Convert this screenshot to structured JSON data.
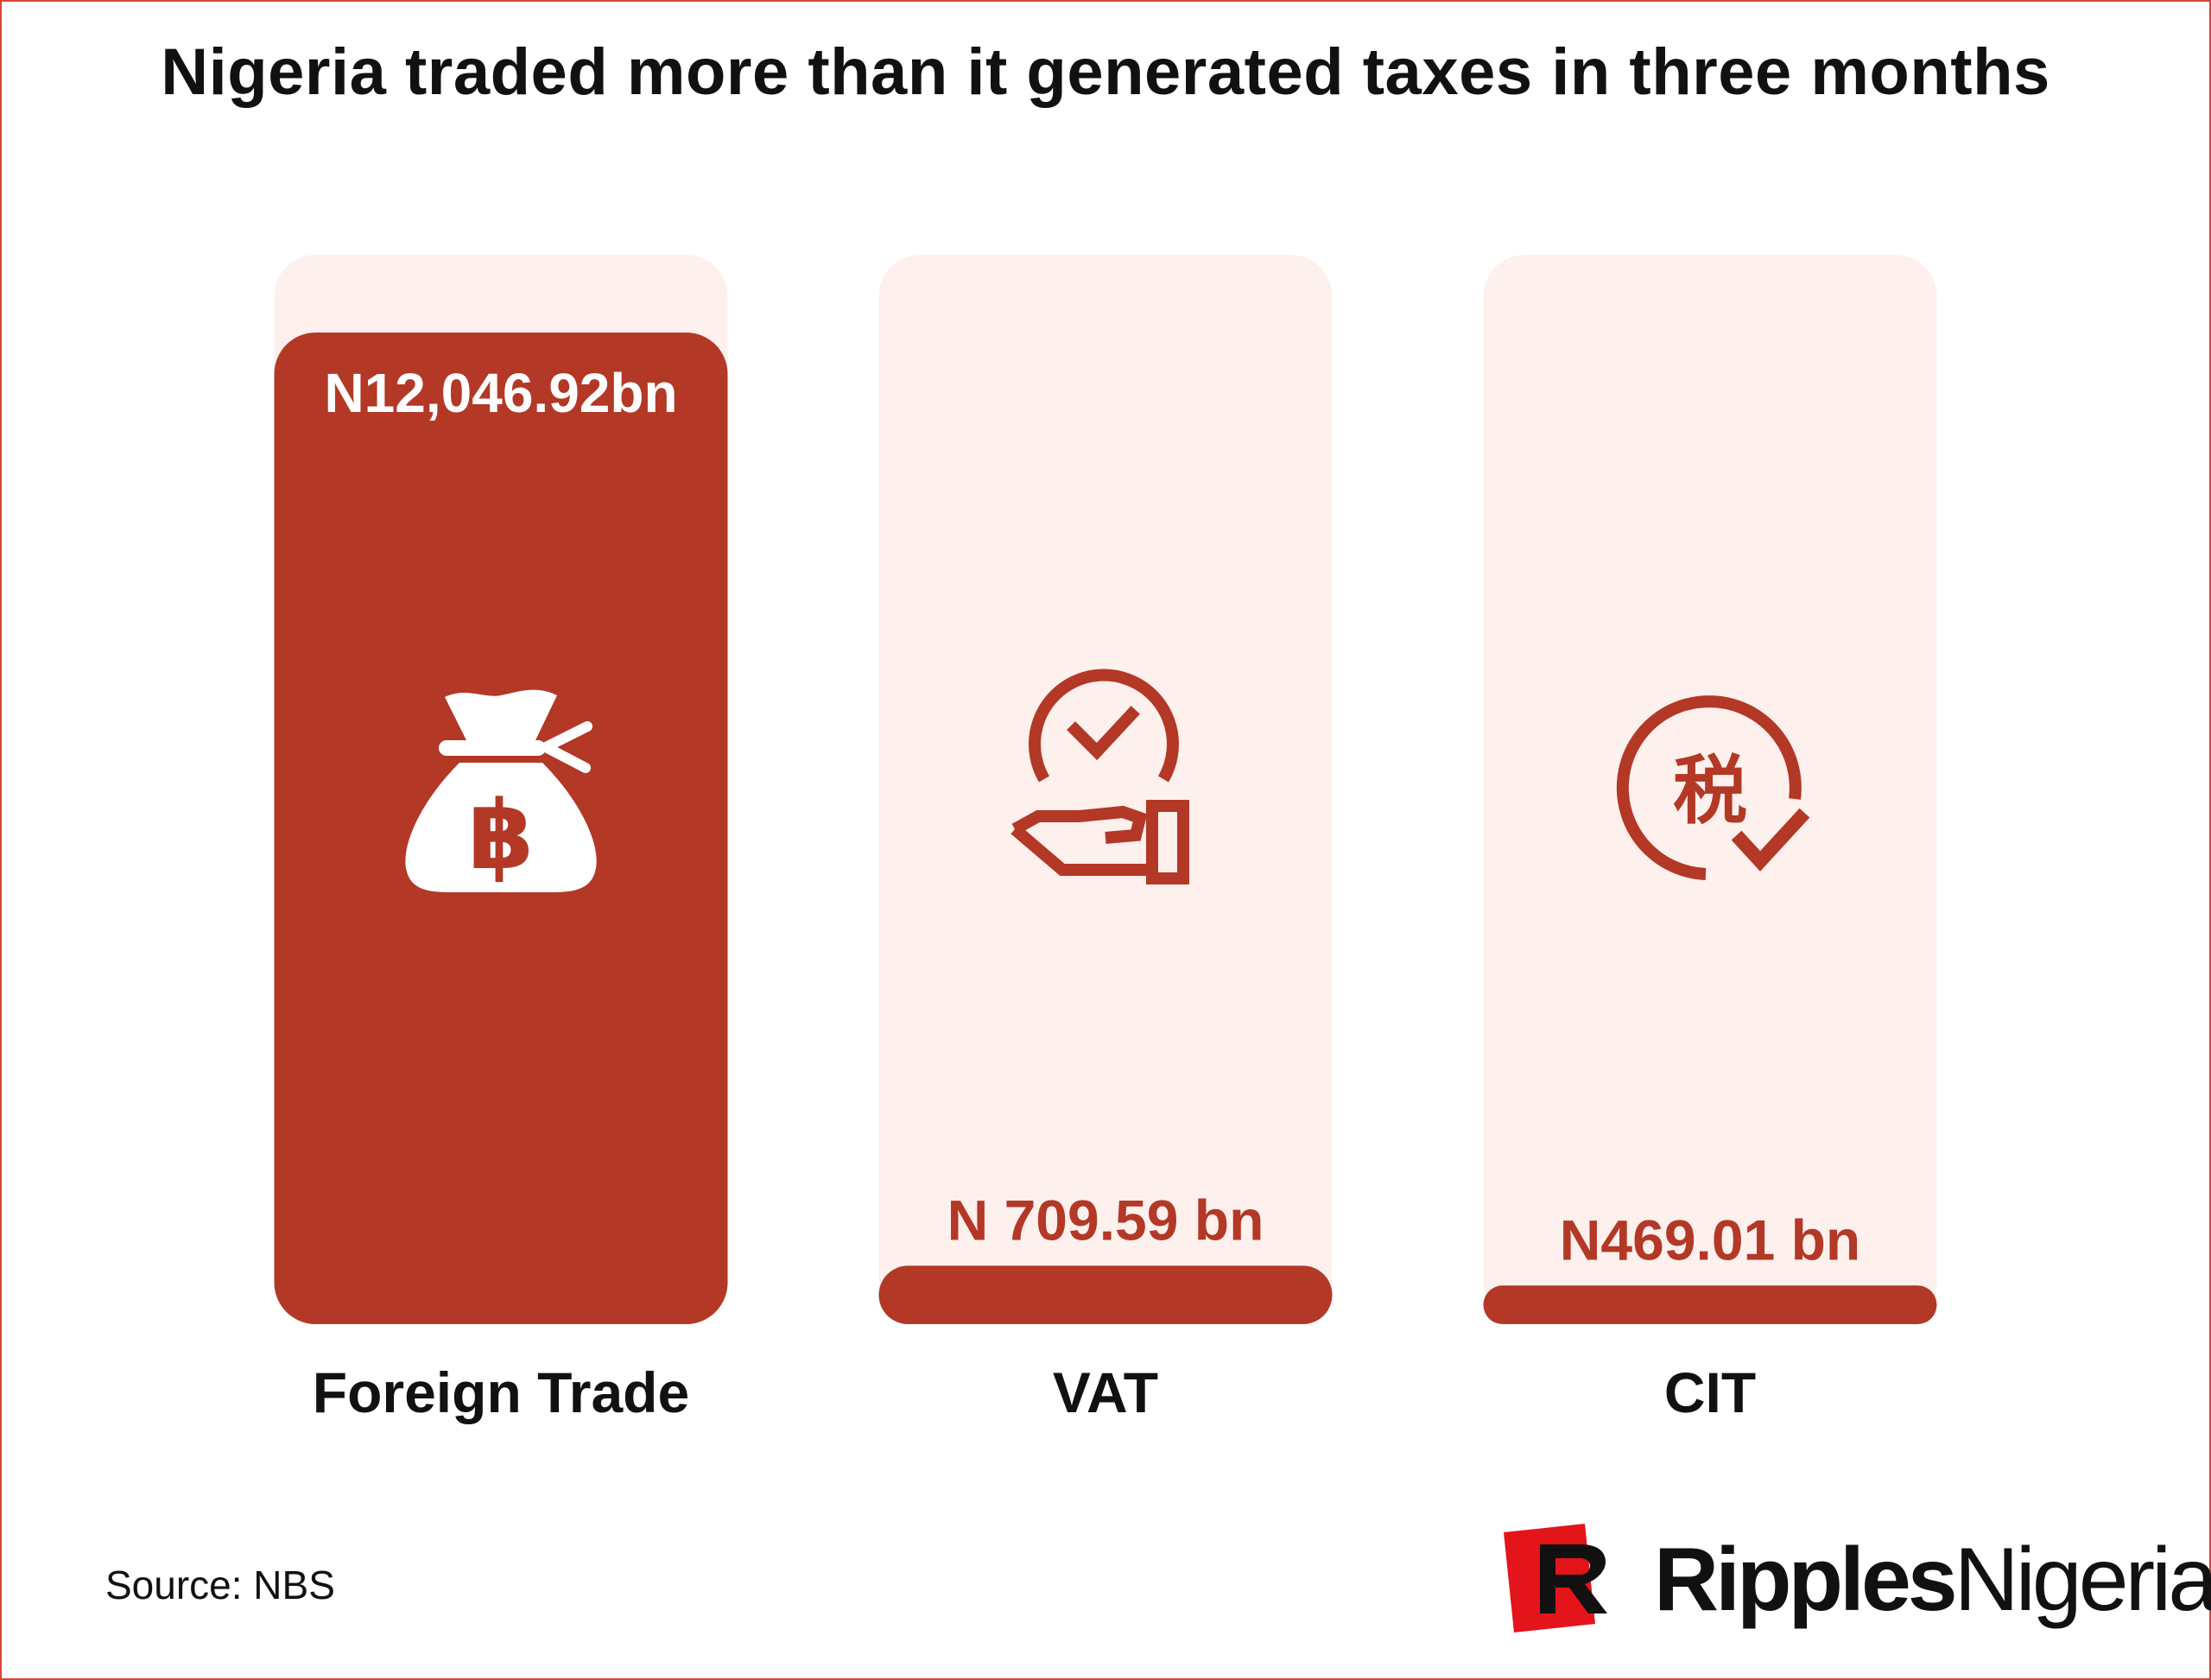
{
  "chart_data": {
    "type": "bar",
    "title": "Nigeria traded more than it generated taxes in three months",
    "categories": [
      "Foreign Trade",
      "VAT",
      "CIT"
    ],
    "values": [
      12046.92,
      709.59,
      469.01
    ],
    "value_labels": [
      "N12,046.92bn",
      "N 709.59 bn",
      "N469.01 bn"
    ],
    "icons": [
      "money-bag-icon",
      "hand-coin-check-icon",
      "tax-check-icon"
    ],
    "unit": "bn",
    "ylim": [
      0,
      12046.92
    ],
    "colors": {
      "bar": "#b33826",
      "track": "#fdf0ed",
      "label_inside": "#ffffff",
      "label_outside": "#b33826"
    }
  },
  "source": "Source: NBS",
  "logo": {
    "name_bold": "Ripples",
    "name_regular": "Nigeria"
  }
}
